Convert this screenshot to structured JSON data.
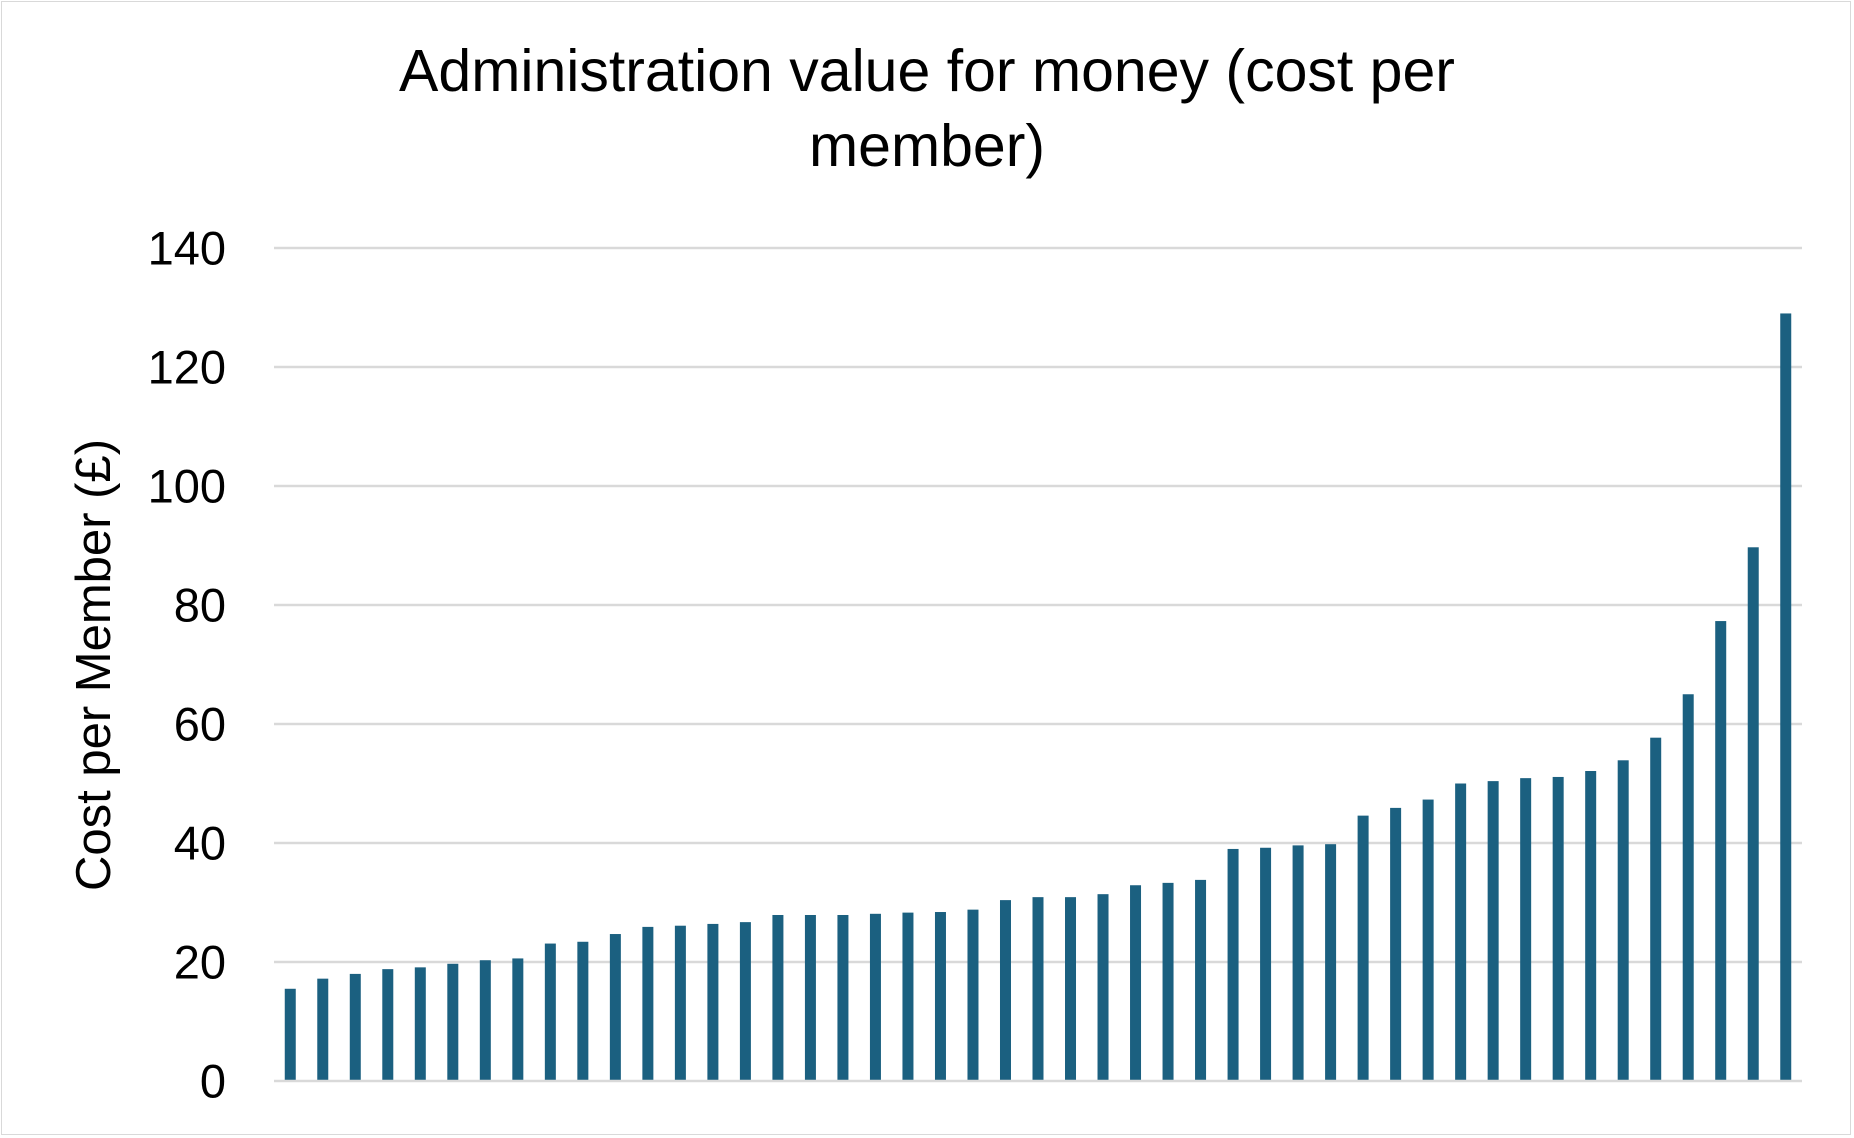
{
  "chart_data": {
    "type": "bar",
    "title": "Administration value for money (cost per member)",
    "xlabel": "",
    "ylabel": "Cost per Member (£)",
    "ylim": [
      0,
      140
    ],
    "yticks": [
      0,
      20,
      40,
      60,
      80,
      100,
      120,
      140
    ],
    "grid": true,
    "legend": "none",
    "bar_color": "#1b6080",
    "grid_color": "#d9d9d9",
    "values": [
      15.5,
      17.2,
      18.0,
      18.8,
      19.1,
      19.7,
      20.3,
      20.6,
      23.1,
      23.4,
      24.7,
      25.9,
      26.1,
      26.4,
      26.7,
      27.9,
      27.9,
      27.9,
      28.1,
      28.3,
      28.4,
      28.8,
      30.4,
      30.9,
      30.9,
      31.4,
      32.9,
      33.3,
      33.8,
      39.0,
      39.2,
      39.6,
      39.8,
      44.6,
      45.9,
      47.3,
      50.0,
      50.4,
      50.9,
      51.1,
      52.1,
      53.9,
      57.7,
      65.0,
      77.3,
      89.7,
      129.0
    ]
  }
}
